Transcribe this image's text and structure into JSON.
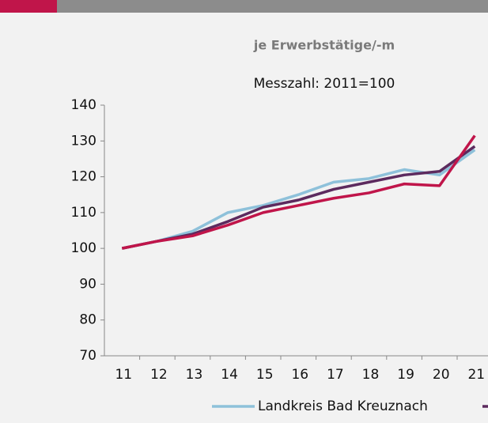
{
  "chart_data": {
    "type": "line",
    "title": "je Erwerbstätige/-m",
    "subtitle": "Messzahl: 2011=100",
    "categories": [
      "11",
      "12",
      "13",
      "14",
      "15",
      "16",
      "17",
      "18",
      "19",
      "20",
      "21"
    ],
    "series": [
      {
        "name": "Landkreis Bad Kreuznach",
        "color": "#8ec1da",
        "values": [
          100,
          102,
          104.8,
          110,
          112,
          115,
          118.5,
          119.5,
          122,
          120.5,
          127.5
        ]
      },
      {
        "color": "#5c2a5e",
        "values": [
          100,
          102,
          104,
          107.5,
          111.5,
          113.5,
          116.5,
          118.5,
          120.5,
          121.5,
          128.5
        ]
      },
      {
        "color": "#c0154a",
        "values": [
          100,
          102,
          103.5,
          106.5,
          110,
          112,
          114,
          115.5,
          118,
          117.5,
          131.5
        ]
      }
    ],
    "ylim": [
      70,
      140
    ],
    "yticks": [
      70,
      80,
      90,
      100,
      110,
      120,
      130,
      140
    ]
  }
}
